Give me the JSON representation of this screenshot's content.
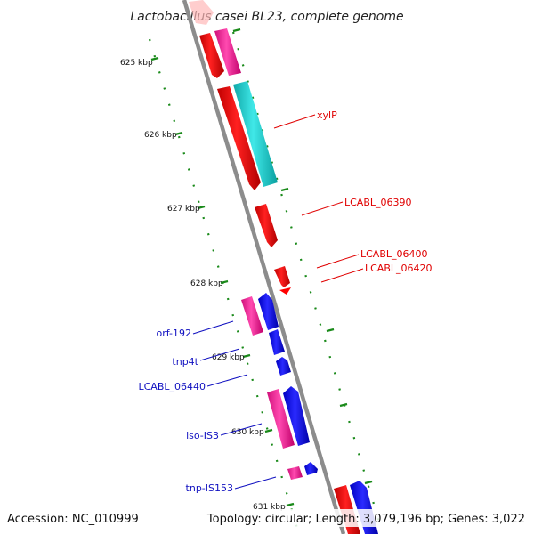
{
  "title": "Lactobacillus casei BL23, complete genome",
  "footer": {
    "accession": "Accession: NC_010999",
    "summary": "Topology: circular; Length: 3,079,196 bp; Genes: 3,022"
  },
  "ticks": [
    {
      "kb": 625,
      "label": "625 kbp"
    },
    {
      "kb": 626,
      "label": "626 kbp"
    },
    {
      "kb": 627,
      "label": "627 kbp"
    },
    {
      "kb": 628,
      "label": "628 kbp"
    },
    {
      "kb": 629,
      "label": "629 kbp"
    },
    {
      "kb": 630,
      "label": "630 kbp"
    },
    {
      "kb": 631,
      "label": "631 kbp"
    }
  ],
  "gene_labels": [
    {
      "text": "xylP",
      "color": "#e00000"
    },
    {
      "text": "LCABL_06390",
      "color": "#e00000"
    },
    {
      "text": "LCABL_06400",
      "color": "#e00000"
    },
    {
      "text": "LCABL_06420",
      "color": "#e00000"
    },
    {
      "text": "orf-192",
      "color": "#1010c0"
    },
    {
      "text": "tnp4t",
      "color": "#1010c0"
    },
    {
      "text": "LCABL_06440",
      "color": "#1010c0"
    },
    {
      "text": "iso-IS3",
      "color": "#1010c0"
    },
    {
      "text": "tnp-IS153",
      "color": "#1010c0"
    }
  ],
  "colors": {
    "backbone": "#8c8c8c",
    "tick_dots": "#1a8a1a",
    "gene_red": "#ff0000",
    "gene_pink": "#ff2aa0",
    "gene_cyan": "#1ed2d2",
    "gene_blue": "#1010ff"
  }
}
